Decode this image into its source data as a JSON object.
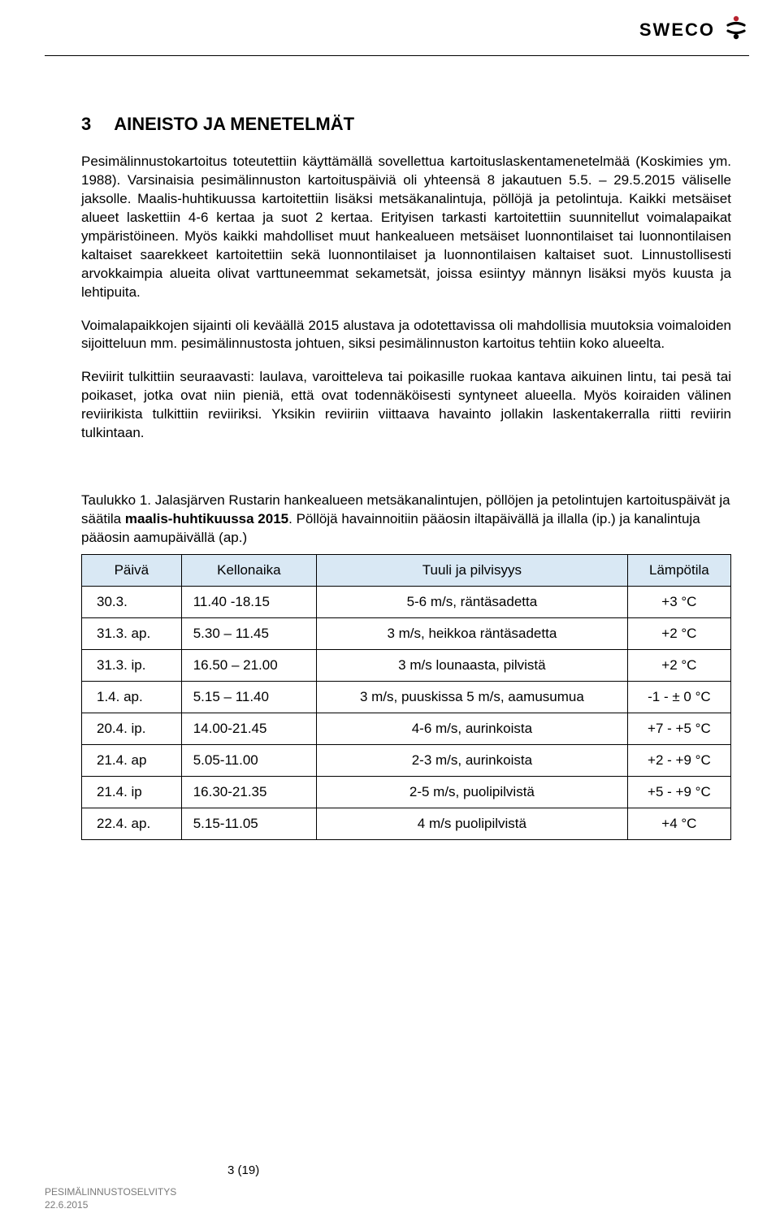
{
  "header": {
    "brand": "SWECO"
  },
  "section": {
    "number": "3",
    "title": "AINEISTO JA MENETELMÄT"
  },
  "paragraphs": {
    "p1": "Pesimälinnustokartoitus toteutettiin käyttämällä sovellettua kartoituslaskentamenetelmää (Koskimies ym. 1988). Varsinaisia pesimälinnuston kartoituspäiviä oli yhteensä 8 jakautuen 5.5. – 29.5.2015 väliselle jaksolle. Maalis-huhtikuussa kartoitettiin lisäksi metsäkanalintuja, pöllöjä ja petolintuja. Kaikki metsäiset alueet laskettiin 4-6 kertaa ja suot 2 kertaa. Erityisen tarkasti kartoitettiin suunnitellut voimalapaikat ympäristöineen. Myös kaikki mahdolliset muut hankealueen metsäiset luonnontilaiset tai luonnontilaisen kaltaiset saarekkeet kartoitettiin sekä luonnontilaiset ja luonnontilaisen kaltaiset suot. Linnustollisesti arvokkaimpia alueita olivat varttuneemmat sekametsät, joissa esiintyy männyn lisäksi myös kuusta ja lehtipuita.",
    "p2": "Voimalapaikkojen sijainti oli keväällä 2015 alustava ja odotettavissa oli mahdollisia muutoksia voimaloiden sijoitteluun mm. pesimälinnustosta johtuen, siksi pesimälinnuston kartoitus tehtiin koko alueelta.",
    "p3": "Reviirit tulkittiin seuraavasti: laulava, varoitteleva tai poikasille ruokaa kantava aikuinen lintu, tai pesä tai poikaset, jotka ovat niin pieniä, että ovat todennäköisesti syntyneet alueella. Myös koiraiden välinen reviirikista tulkittiin reviiriksi. Yksikin reviiriin viittaava havainto jollakin laskentakerralla riitti reviirin tulkintaan."
  },
  "table_caption": {
    "lead": "Taulukko 1. Jalasjärven Rustarin hankealueen metsäkanalintujen, pöllöjen ja petolintujen kartoituspäivät ja säätila ",
    "bold": "maalis-huhtikuussa 2015",
    "trail": ". Pöllöjä havainnoitiin pääosin iltapäivällä ja illalla (ip.) ja kanalintuja pääosin aamupäivällä (ap.)"
  },
  "table": {
    "header_bg": "#d9e8f4",
    "border_color": "#000000",
    "columns": [
      "Päivä",
      "Kellonaika",
      "Tuuli ja pilvisyys",
      "Lämpötila"
    ],
    "rows": [
      [
        "30.3.",
        "11.40 -18.15",
        "5-6 m/s, räntäsadetta",
        "+3 °C"
      ],
      [
        "31.3. ap.",
        "5.30 – 11.45",
        "3 m/s, heikkoa räntäsadetta",
        "+2 °C"
      ],
      [
        "31.3. ip.",
        "16.50 – 21.00",
        "3 m/s lounaasta, pilvistä",
        "+2 °C"
      ],
      [
        "1.4. ap.",
        "5.15 – 11.40",
        "3 m/s, puuskissa 5 m/s, aamusumua",
        "-1 - ± 0 °C"
      ],
      [
        "20.4. ip.",
        "14.00-21.45",
        "4-6 m/s, aurinkoista",
        "+7 - +5 °C"
      ],
      [
        "21.4. ap",
        "5.05-11.00",
        "2-3 m/s, aurinkoista",
        "+2 - +9 °C"
      ],
      [
        "21.4. ip",
        "16.30-21.35",
        "2-5 m/s, puolipilvistä",
        "+5 - +9 °C"
      ],
      [
        "22.4. ap.",
        "5.15-11.05",
        "4 m/s puolipilvistä",
        "+4 °C"
      ]
    ]
  },
  "footer": {
    "page_num": "3 (19)",
    "line1": "PESIMÄLINNUSTOSELVITYS",
    "line2": "22.6.2015"
  }
}
